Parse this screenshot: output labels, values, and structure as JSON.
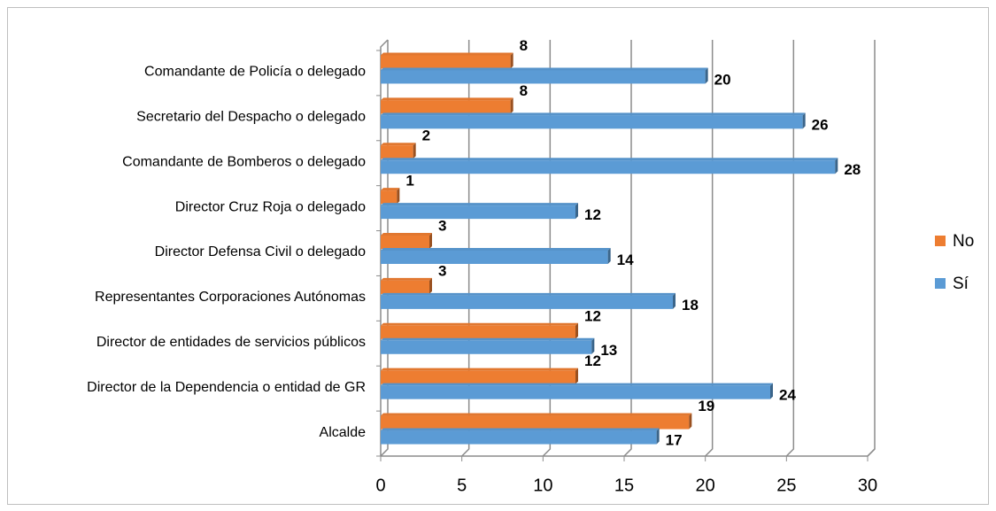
{
  "chart_data": {
    "type": "bar",
    "orientation": "horizontal",
    "categories": [
      "Comandante de Policía o delegado",
      "Secretario del Despacho  o delegado",
      "Comandante de Bomberos o delegado",
      "Director Cruz Roja o delegado",
      "Director Defensa Civil o delegado",
      "Representantes Corporaciones Autónomas",
      "Director de entidades de servicios públicos",
      "Director de la Dependencia o entidad de GR",
      "Alcalde"
    ],
    "series": [
      {
        "name": "No",
        "color": "#ed7d31",
        "values": [
          8,
          8,
          2,
          1,
          3,
          3,
          12,
          12,
          19
        ]
      },
      {
        "name": "Sí",
        "color": "#5b9bd5",
        "values": [
          20,
          26,
          28,
          12,
          14,
          18,
          13,
          24,
          17
        ]
      }
    ],
    "xlim": [
      0,
      30
    ],
    "xticks": [
      0,
      5,
      10,
      15,
      20,
      25,
      30
    ],
    "grid": true,
    "legend": "right"
  }
}
